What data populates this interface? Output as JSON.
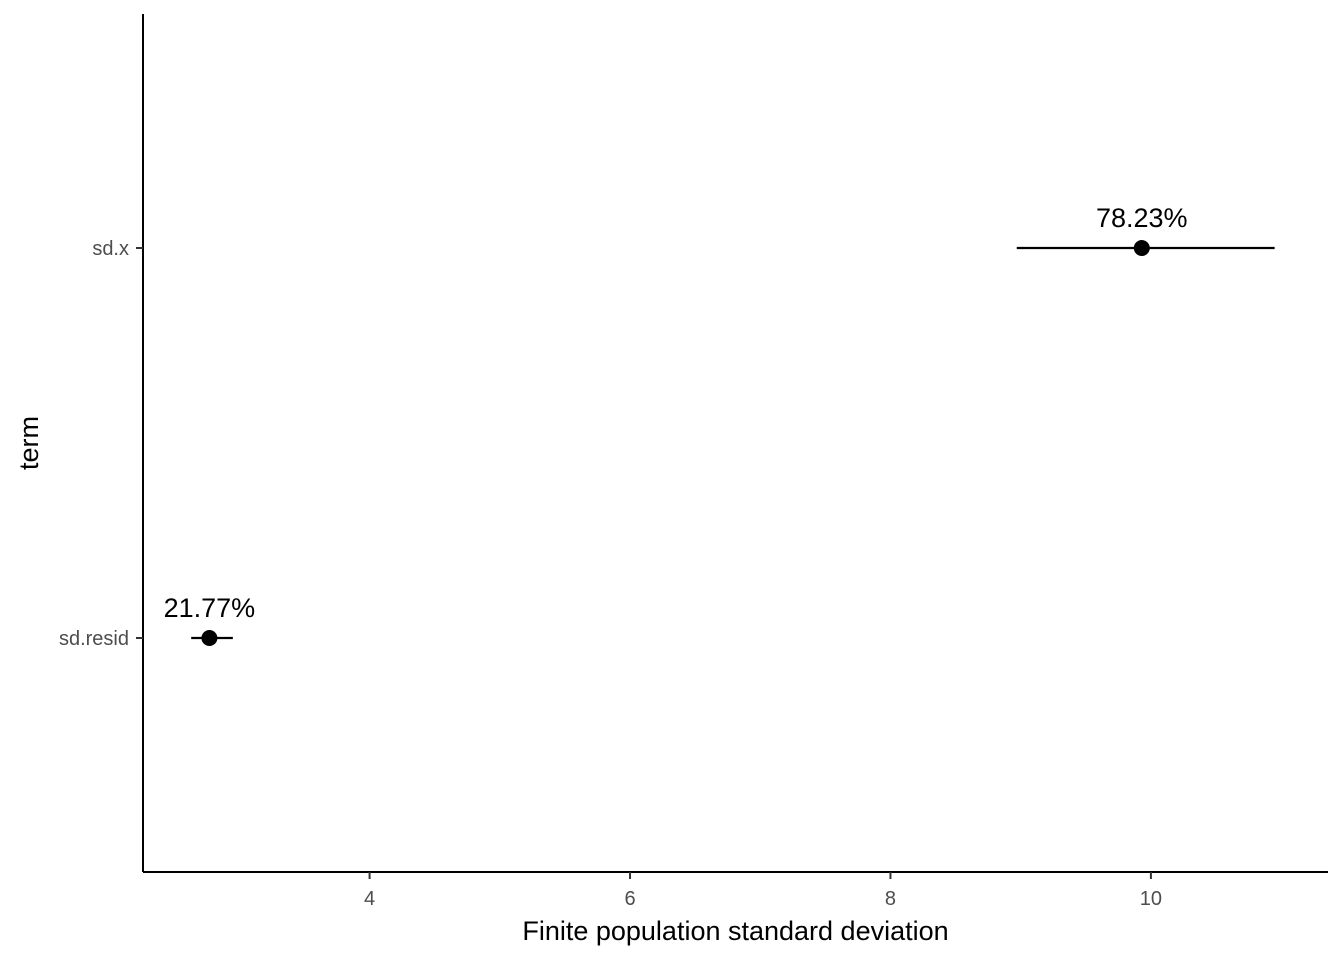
{
  "chart_data": {
    "type": "scatter",
    "title": "",
    "xlabel": "Finite population standard deviation",
    "ylabel": "term",
    "xlim": [
      2.26,
      11.36
    ],
    "xticks": [
      4,
      6,
      8,
      10
    ],
    "xtick_labels": [
      "4",
      "6",
      "8",
      "10"
    ],
    "categories": [
      "sd.x",
      "sd.resid"
    ],
    "points": [
      {
        "term": "sd.x",
        "estimate": 9.93,
        "low": 8.97,
        "high": 10.95,
        "label": "78.23%"
      },
      {
        "term": "sd.resid",
        "estimate": 2.77,
        "low": 2.63,
        "high": 2.95,
        "label": "21.77%"
      }
    ],
    "grid": false,
    "legend": "none"
  }
}
